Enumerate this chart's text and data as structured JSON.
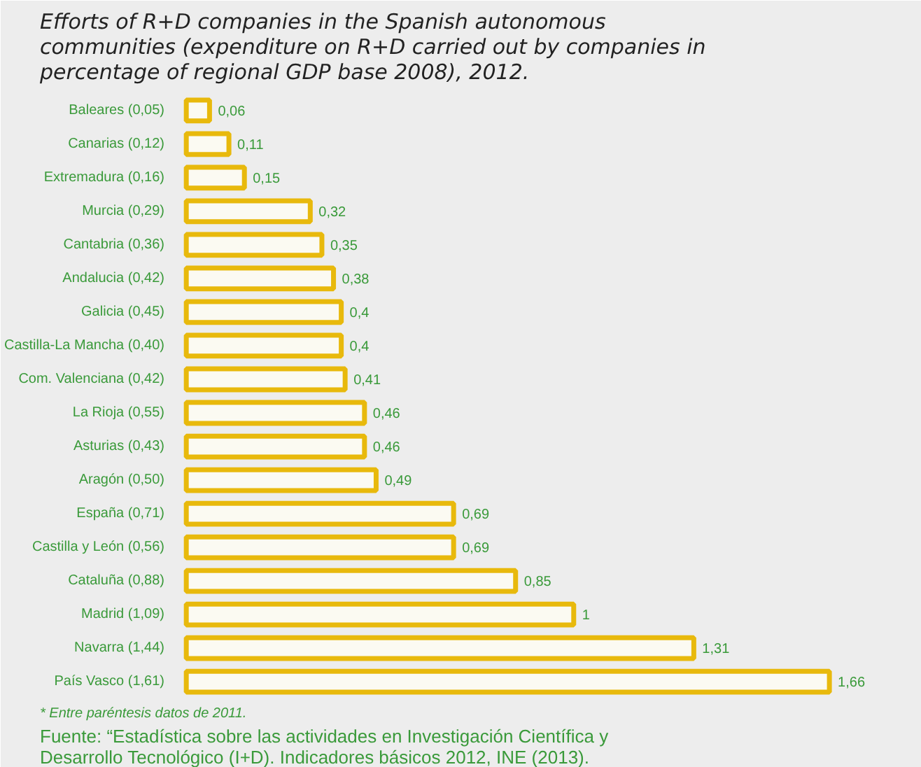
{
  "chart_data": {
    "type": "bar",
    "orientation": "horizontal",
    "title": "Efforts of R+D companies in the Spanish autonomous communities (expenditure on R+D carried out by companies in percentage of regional GDP base 2008), 2012.",
    "categories": [
      "Baleares (0,05)",
      "Canarias (0,12)",
      "Extremadura (0,16)",
      "Murcia (0,29)",
      "Cantabria (0,36)",
      "Andalucia (0,42)",
      "Galicia (0,45)",
      "Castilla-La Mancha (0,40)",
      "Com. Valenciana (0,42)",
      "La Rioja (0,55)",
      "Asturias (0,43)",
      "Aragón (0,50)",
      "España (0,71)",
      "Castilla y León (0,56)",
      "Cataluña (0,88)",
      "Madrid (1,09)",
      "Navarra (1,44)",
      "País Vasco (1,61)"
    ],
    "values": [
      0.06,
      0.11,
      0.15,
      0.32,
      0.35,
      0.38,
      0.4,
      0.4,
      0.41,
      0.46,
      0.46,
      0.49,
      0.69,
      0.69,
      0.85,
      1,
      1.31,
      1.66
    ],
    "value_labels": [
      "0,06",
      "0,11",
      "0,15",
      "0,32",
      "0,35",
      "0,38",
      "0,4",
      "0,4",
      "0,41",
      "0,46",
      "0,46",
      "0,49",
      "0,69",
      "0,69",
      "0,85",
      "1",
      "1,31",
      "1,66"
    ],
    "color": "#e8b90c",
    "annotations": [
      "* Entre paréntesis datos de 2011.",
      "Fuente: “Estadística sobre las actividades en Investigación Científica y Desarrollo Tecnológico (I+D). Indicadores básicos 2012, INE (2013)."
    ]
  }
}
